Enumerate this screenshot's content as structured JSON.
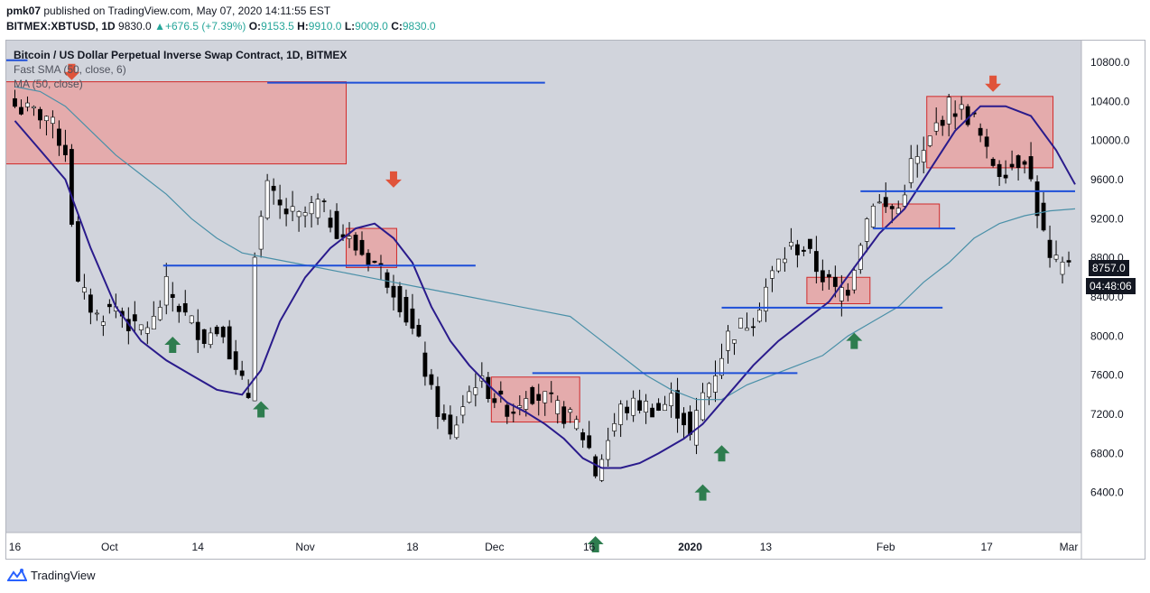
{
  "header": {
    "user": "pmk07",
    "published": "published on TradingView.com, May 07, 2020 14:11:55 EST",
    "symbol": "BITMEX:XBTUSD, 1D",
    "price": "9830.0",
    "change": "+676.5 (+7.39%)",
    "o_label": "O:",
    "o": "9153.5",
    "h_label": "H:",
    "h": "9910.0",
    "l_label": "L:",
    "l": "9009.0",
    "c_label": "C:",
    "c": "9830.0"
  },
  "legend": {
    "title": "Bitcoin / US Dollar Perpetual Inverse Swap Contract, 1D, BITMEX",
    "ind1": "Fast SMA (50, close, 6)",
    "ind2": "MA (50, close)"
  },
  "footer": {
    "brand": "TradingView"
  },
  "price_tag": "8757.0",
  "timer_tag": "04:48:06",
  "colors": {
    "up_candle": "#ffffff",
    "down_candle": "#000000",
    "fast_ma": "#2a1b8c",
    "ma50": "#4a90a8",
    "level_line": "#1e4fd8",
    "zone_fill": "#e8a0a0",
    "zone_stroke": "#d12a2a",
    "up_arrow": "#2e7d4f",
    "down_arrow": "#e0533a",
    "plot_bg": "#d1d4dc"
  },
  "chart_data": {
    "type": "candlestick",
    "title": "Bitcoin / US Dollar Perpetual Inverse Swap Contract, 1D, BITMEX",
    "y_ticks": [
      10800,
      10400,
      10000,
      9600,
      9200,
      8800,
      8400,
      8000,
      7600,
      7200,
      6800,
      6400
    ],
    "y_tick_labels": [
      "10800.0",
      "10400.0",
      "10000.0",
      "9600.0",
      "9200.0",
      "8800.0",
      "8400.0",
      "8000.0",
      "7600.0",
      "7200.0",
      "6800.0",
      "6400.0"
    ],
    "ylim": [
      5990,
      11030
    ],
    "x_ticks": [
      {
        "label": "16",
        "x": 0
      },
      {
        "label": "Oct",
        "x": 15
      },
      {
        "label": "14",
        "x": 29
      },
      {
        "label": "Nov",
        "x": 46
      },
      {
        "label": "18",
        "x": 63
      },
      {
        "label": "Dec",
        "x": 76
      },
      {
        "label": "16",
        "x": 91
      },
      {
        "label": "2020",
        "x": 107
      },
      {
        "label": "13",
        "x": 119
      },
      {
        "label": "Feb",
        "x": 138
      },
      {
        "label": "17",
        "x": 154
      },
      {
        "label": "Mar",
        "x": 167
      }
    ],
    "xlim": [
      -1.5,
      169
    ],
    "anchors": [
      [
        0,
        10350
      ],
      [
        2,
        10300
      ],
      [
        5,
        10250
      ],
      [
        8,
        9900
      ],
      [
        10,
        8500
      ],
      [
        13,
        8200
      ],
      [
        16,
        8300
      ],
      [
        19,
        8050
      ],
      [
        22,
        8150
      ],
      [
        24,
        8500
      ],
      [
        27,
        8200
      ],
      [
        30,
        8000
      ],
      [
        33,
        8100
      ],
      [
        35,
        7600
      ],
      [
        37,
        7400
      ],
      [
        38,
        8900
      ],
      [
        40,
        9500
      ],
      [
        42,
        9300
      ],
      [
        45,
        9200
      ],
      [
        48,
        9350
      ],
      [
        51,
        9100
      ],
      [
        54,
        8900
      ],
      [
        57,
        8750
      ],
      [
        60,
        8500
      ],
      [
        62,
        8200
      ],
      [
        64,
        7900
      ],
      [
        66,
        7400
      ],
      [
        68,
        7100
      ],
      [
        69,
        6950
      ],
      [
        71,
        7300
      ],
      [
        73,
        7550
      ],
      [
        75,
        7450
      ],
      [
        77,
        7300
      ],
      [
        79,
        7250
      ],
      [
        81,
        7450
      ],
      [
        84,
        7350
      ],
      [
        87,
        7200
      ],
      [
        89,
        7100
      ],
      [
        91,
        6850
      ],
      [
        92,
        6600
      ],
      [
        94,
        6950
      ],
      [
        96,
        7250
      ],
      [
        99,
        7300
      ],
      [
        102,
        7250
      ],
      [
        104,
        7350
      ],
      [
        106,
        7150
      ],
      [
        107,
        6950
      ],
      [
        109,
        7400
      ],
      [
        111,
        7650
      ],
      [
        113,
        8000
      ],
      [
        115,
        8100
      ],
      [
        117,
        8200
      ],
      [
        119,
        8500
      ],
      [
        121,
        8750
      ],
      [
        123,
        8900
      ],
      [
        125,
        8900
      ],
      [
        127,
        8700
      ],
      [
        130,
        8450
      ],
      [
        132,
        8500
      ],
      [
        134,
        9000
      ],
      [
        136,
        9400
      ],
      [
        138,
        9300
      ],
      [
        140,
        9300
      ],
      [
        142,
        9750
      ],
      [
        144,
        9850
      ],
      [
        146,
        10150
      ],
      [
        148,
        10350
      ],
      [
        150,
        10300
      ],
      [
        152,
        10200
      ],
      [
        154,
        9850
      ],
      [
        156,
        9700
      ],
      [
        158,
        9750
      ],
      [
        160,
        9850
      ],
      [
        162,
        9300
      ],
      [
        164,
        8750
      ],
      [
        166,
        8700
      ],
      [
        167,
        8790
      ]
    ],
    "fast_sma": [
      [
        0,
        10200
      ],
      [
        4,
        9900
      ],
      [
        8,
        9600
      ],
      [
        12,
        8900
      ],
      [
        16,
        8300
      ],
      [
        20,
        7950
      ],
      [
        24,
        7750
      ],
      [
        28,
        7600
      ],
      [
        32,
        7450
      ],
      [
        36,
        7400
      ],
      [
        39,
        7650
      ],
      [
        42,
        8150
      ],
      [
        46,
        8600
      ],
      [
        50,
        8900
      ],
      [
        54,
        9100
      ],
      [
        57,
        9150
      ],
      [
        60,
        9000
      ],
      [
        63,
        8750
      ],
      [
        66,
        8300
      ],
      [
        69,
        7950
      ],
      [
        72,
        7700
      ],
      [
        75,
        7500
      ],
      [
        78,
        7320
      ],
      [
        81,
        7220
      ],
      [
        84,
        7100
      ],
      [
        87,
        6950
      ],
      [
        90,
        6750
      ],
      [
        93,
        6650
      ],
      [
        96,
        6650
      ],
      [
        99,
        6700
      ],
      [
        102,
        6800
      ],
      [
        106,
        6950
      ],
      [
        109,
        7100
      ],
      [
        113,
        7400
      ],
      [
        117,
        7700
      ],
      [
        121,
        7950
      ],
      [
        125,
        8150
      ],
      [
        129,
        8350
      ],
      [
        133,
        8700
      ],
      [
        137,
        9050
      ],
      [
        141,
        9300
      ],
      [
        145,
        9700
      ],
      [
        149,
        10100
      ],
      [
        153,
        10350
      ],
      [
        157,
        10350
      ],
      [
        161,
        10250
      ],
      [
        165,
        9900
      ],
      [
        168,
        9550
      ]
    ],
    "ma50": [
      [
        0,
        10550
      ],
      [
        4,
        10500
      ],
      [
        8,
        10350
      ],
      [
        12,
        10100
      ],
      [
        16,
        9850
      ],
      [
        20,
        9650
      ],
      [
        24,
        9450
      ],
      [
        28,
        9200
      ],
      [
        32,
        9000
      ],
      [
        36,
        8850
      ],
      [
        40,
        8800
      ],
      [
        44,
        8750
      ],
      [
        48,
        8700
      ],
      [
        52,
        8650
      ],
      [
        56,
        8600
      ],
      [
        60,
        8550
      ],
      [
        64,
        8500
      ],
      [
        68,
        8450
      ],
      [
        72,
        8400
      ],
      [
        76,
        8350
      ],
      [
        80,
        8300
      ],
      [
        84,
        8250
      ],
      [
        88,
        8200
      ],
      [
        92,
        8000
      ],
      [
        96,
        7800
      ],
      [
        100,
        7600
      ],
      [
        104,
        7450
      ],
      [
        108,
        7350
      ],
      [
        112,
        7350
      ],
      [
        116,
        7500
      ],
      [
        120,
        7600
      ],
      [
        124,
        7700
      ],
      [
        128,
        7800
      ],
      [
        132,
        8000
      ],
      [
        136,
        8150
      ],
      [
        140,
        8300
      ],
      [
        144,
        8550
      ],
      [
        148,
        8750
      ],
      [
        152,
        9000
      ],
      [
        156,
        9150
      ],
      [
        160,
        9230
      ],
      [
        164,
        9280
      ],
      [
        168,
        9300
      ]
    ],
    "levels": [
      {
        "x1": -1.5,
        "x2": 2,
        "y": 10820
      },
      {
        "x1": 40,
        "x2": 84,
        "y": 10590
      },
      {
        "x1": 23.5,
        "x2": 73,
        "y": 8720
      },
      {
        "x1": 82,
        "x2": 124,
        "y": 7620
      },
      {
        "x1": 112,
        "x2": 147,
        "y": 8290
      },
      {
        "x1": 134,
        "x2": 168,
        "y": 9480
      },
      {
        "x1": 136,
        "x2": 149,
        "y": 9100
      }
    ],
    "zones": [
      {
        "x1": -1.5,
        "x2": 52.5,
        "y1": 9760,
        "y2": 10600
      },
      {
        "x1": 52.5,
        "x2": 60.5,
        "y1": 8700,
        "y2": 9100
      },
      {
        "x1": 75.5,
        "x2": 89.5,
        "y1": 7120,
        "y2": 7580
      },
      {
        "x1": 125.5,
        "x2": 135.5,
        "y1": 8330,
        "y2": 8600
      },
      {
        "x1": 137.5,
        "x2": 146.5,
        "y1": 9100,
        "y2": 9350
      },
      {
        "x1": 144.5,
        "x2": 164.5,
        "y1": 9720,
        "y2": 10450
      }
    ],
    "up_signals": [
      [
        25,
        7910
      ],
      [
        39,
        7250
      ],
      [
        92,
        5870
      ],
      [
        109,
        6400
      ],
      [
        112,
        6800
      ],
      [
        133,
        7950
      ]
    ],
    "down_signals": [
      [
        9,
        10700
      ],
      [
        60,
        9600
      ],
      [
        155,
        10580
      ]
    ]
  }
}
